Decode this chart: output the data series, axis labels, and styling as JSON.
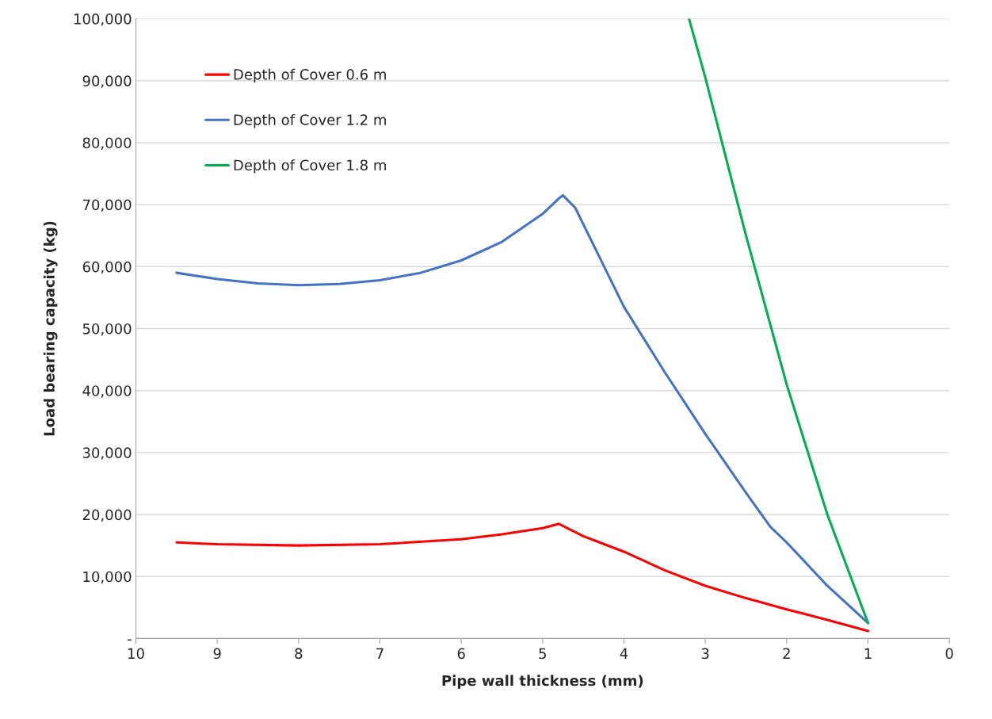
{
  "chart_data": {
    "type": "line",
    "xlabel": "Pipe wall thickness (mm)",
    "ylabel": "Load bearing capacity (kg)",
    "xlim": [
      10,
      0
    ],
    "xticks": [
      10,
      9,
      8,
      7,
      6,
      5,
      4,
      3,
      2,
      1,
      0
    ],
    "ylim": [
      0,
      100000
    ],
    "yticks": [
      {
        "value": 0,
        "label": "-"
      },
      {
        "value": 10000,
        "label": "10,000"
      },
      {
        "value": 20000,
        "label": "20,000"
      },
      {
        "value": 30000,
        "label": "30,000"
      },
      {
        "value": 40000,
        "label": "40,000"
      },
      {
        "value": 50000,
        "label": "50,000"
      },
      {
        "value": 60000,
        "label": "60,000"
      },
      {
        "value": 70000,
        "label": "70,000"
      },
      {
        "value": 80000,
        "label": "80,000"
      },
      {
        "value": 90000,
        "label": "90,000"
      },
      {
        "value": 100000,
        "label": "100,000"
      }
    ],
    "grid": "y",
    "legend": "top left",
    "marker": "none",
    "line_style": "solid",
    "series": [
      {
        "name": "Depth of Cover 0.6 m",
        "color": "#ff0000",
        "x": [
          9.5,
          9,
          8,
          7,
          6,
          5.5,
          5,
          4.8,
          4.5,
          4,
          3.5,
          3,
          2.5,
          2,
          1.5,
          1
        ],
        "values": [
          15500,
          15200,
          15000,
          15200,
          16000,
          16800,
          17800,
          18500,
          16500,
          14000,
          11000,
          8500,
          6500,
          4700,
          3000,
          1200
        ]
      },
      {
        "name": "Depth of Cover 1.2 m",
        "color": "#4472c4",
        "x": [
          9.5,
          9,
          8.5,
          8,
          7.5,
          7,
          6.5,
          6,
          5.5,
          5,
          4.8,
          4.75,
          4.6,
          4,
          3.5,
          3,
          2.5,
          2.2,
          2,
          1.5,
          1
        ],
        "values": [
          59000,
          58000,
          57300,
          57000,
          57200,
          57800,
          59000,
          61000,
          64000,
          68500,
          71000,
          71500,
          69500,
          53500,
          43000,
          33000,
          23500,
          18000,
          15500,
          8500,
          2500
        ]
      },
      {
        "name": "Depth of Cover 1.8 m",
        "color": "#00b050",
        "x": [
          3.2,
          3,
          2.5,
          2,
          1.5,
          1
        ],
        "values": [
          100000,
          90500,
          65000,
          41000,
          20000,
          2500
        ]
      }
    ]
  }
}
